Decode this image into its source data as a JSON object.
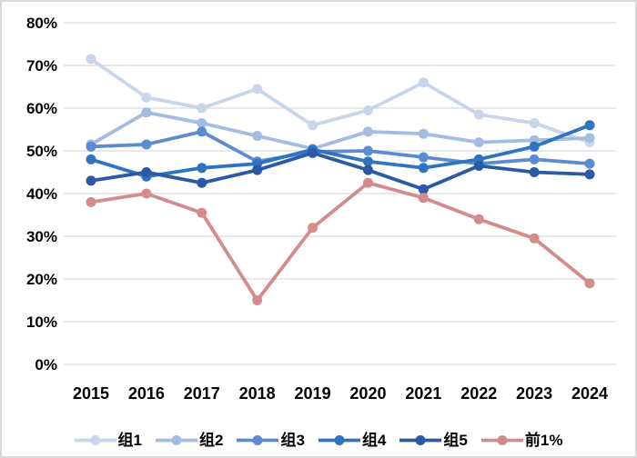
{
  "chart_data": {
    "type": "line",
    "title": "",
    "xlabel": "",
    "ylabel": "",
    "x": [
      "2015",
      "2016",
      "2017",
      "2018",
      "2019",
      "2020",
      "2021",
      "2022",
      "2023",
      "2024"
    ],
    "series": [
      {
        "name": "组1",
        "color": "#c9d5eb",
        "values": [
          71.5,
          62.5,
          60.0,
          64.5,
          56.0,
          59.5,
          66.0,
          58.5,
          56.5,
          52.0
        ]
      },
      {
        "name": "组2",
        "color": "#a4bce2",
        "values": [
          51.5,
          59.0,
          56.5,
          53.5,
          50.5,
          54.5,
          54.0,
          52.0,
          52.5,
          53.0
        ]
      },
      {
        "name": "组3",
        "color": "#5c8bd0",
        "values": [
          51.0,
          51.5,
          54.5,
          47.5,
          49.8,
          50.0,
          48.5,
          47.0,
          48.0,
          47.0
        ]
      },
      {
        "name": "组4",
        "color": "#2e74c0",
        "values": [
          48.0,
          44.0,
          46.0,
          47.0,
          50.3,
          47.5,
          46.0,
          48.0,
          51.0,
          56.0
        ]
      },
      {
        "name": "组5",
        "color": "#2a59a5",
        "values": [
          43.0,
          45.0,
          42.5,
          45.5,
          49.5,
          45.5,
          41.0,
          46.5,
          45.0,
          44.5
        ]
      },
      {
        "name": "前1%",
        "color": "#d28c8c",
        "values": [
          38.0,
          40.0,
          35.5,
          15.0,
          32.0,
          42.5,
          39.0,
          34.0,
          29.5,
          19.0
        ]
      }
    ],
    "ylim": [
      0,
      80
    ],
    "yticks": [
      "0%",
      "10%",
      "20%",
      "30%",
      "40%",
      "50%",
      "60%",
      "70%",
      "80%"
    ],
    "grid": true,
    "legend_position": "bottom",
    "colors": {
      "gridline": "#d9d9d9",
      "axis_text": "#000000",
      "background": "#ffffff"
    }
  }
}
